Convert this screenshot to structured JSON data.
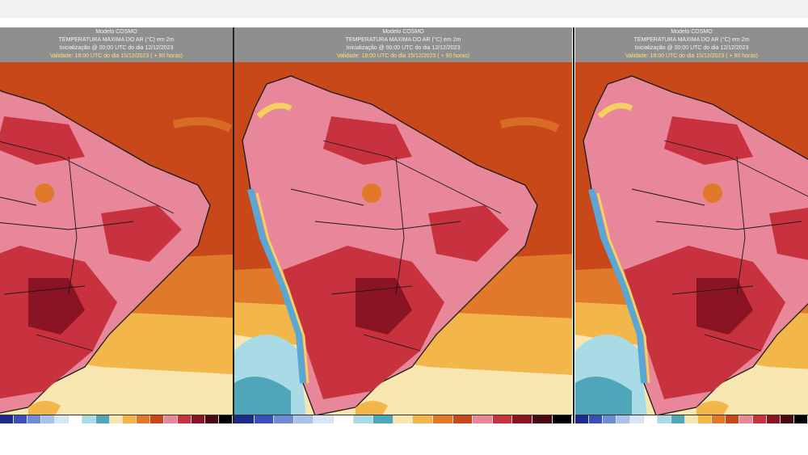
{
  "panels": [
    {
      "model": "Modelo COSMO",
      "title": "TEMPERATURA MÁXIMA DO AR (°C) em 2m",
      "init": "Inicialização @ 00:00 UTC do dia 12/12/2023",
      "valid": "Validade: 18:00 UTC do dia 15/12/2023 ( + 90 horas)"
    },
    {
      "model": "Modelo COSMO",
      "title": "TEMPERATURA MÁXIMA DO AR (°C) em 2m",
      "init": "Inicialização @ 00:00 UTC do dia 12/12/2023",
      "valid": "Validade: 18:00 UTC do dia 15/12/2023 ( + 90 horas)"
    },
    {
      "model": "Modelo COSMO",
      "title": "TEMPERATURA MÁXIMA DO AR (°C) em 2m",
      "init": "Inicialização @ 00:00 UTC do dia 12/12/2023",
      "valid": "Validade: 18:00 UTC do dia 15/12/2023 ( + 90 horas)"
    }
  ],
  "colors": {
    "ocean_warm": "#c9481a",
    "ocean_mid": "#e07a2a",
    "ocean_cool": "#f2b64a",
    "ocean_pale": "#f7e6b0",
    "ocean_cold": "#a8dbe6",
    "ocean_teal": "#4ea6b8",
    "land_pink": "#e8869a",
    "land_red": "#c8323e",
    "land_dark": "#8b1424",
    "andes_blue": "#5aa7d6",
    "andes_yellow": "#f4d060",
    "border": "#1a1a1a"
  },
  "legend_colors": [
    "#1e2a8a",
    "#3a4fb8",
    "#6f8bd6",
    "#a9c2ea",
    "#d6e6f4",
    "#ffffff",
    "#a8dbe6",
    "#4ea6b8",
    "#f7e6b0",
    "#f2b64a",
    "#e07a2a",
    "#c9481a",
    "#e8869a",
    "#c8323e",
    "#8b1424",
    "#4a0a14",
    "#000000"
  ]
}
